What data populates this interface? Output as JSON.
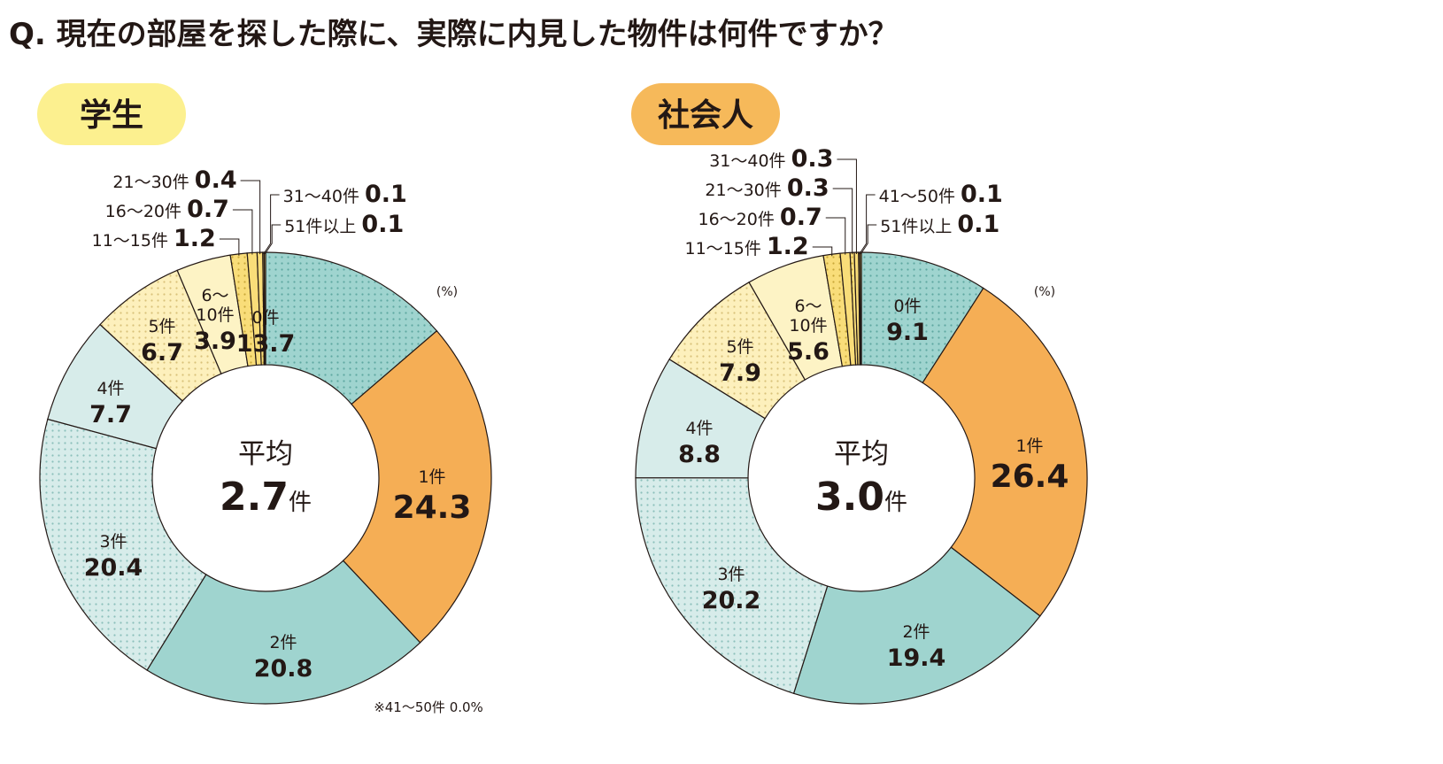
{
  "title": "Q. 現在の部屋を探した際に、実際に内見した物件は何件ですか？",
  "unit_label": "(%)",
  "center_label": "平均",
  "center_unit": "件",
  "colors": {
    "0": "#9fd4cf",
    "1": "#f5ae55",
    "2": "#9fd4cf",
    "3": "#d7ecea",
    "4": "#d7ecea",
    "5": "#fdf0bc",
    "6": "#fdf3c5",
    "small": "#f9dd79",
    "student_pill": "#fcf08f",
    "worker_pill": "#f6b95a",
    "stroke": "#231815"
  },
  "chart_data": [
    {
      "type": "pie",
      "title": "学生",
      "average": "2.7",
      "note": "※41～50件 0.0%",
      "categories": [
        "0件",
        "1件",
        "2件",
        "3件",
        "4件",
        "5件",
        "6～10件",
        "11～15件",
        "16～20件",
        "21～30件",
        "31～40件",
        "41～50件",
        "51件以上"
      ],
      "values": [
        13.7,
        24.3,
        20.8,
        20.4,
        7.7,
        6.7,
        3.9,
        1.2,
        0.7,
        0.4,
        0.1,
        0.0,
        0.1
      ],
      "labels": [
        {
          "cat": "0件",
          "val": "13.7"
        },
        {
          "cat": "1件",
          "val": "24.3"
        },
        {
          "cat": "2件",
          "val": "20.8"
        },
        {
          "cat": "3件",
          "val": "20.4"
        },
        {
          "cat": "4件",
          "val": "7.7"
        },
        {
          "cat": "5件",
          "val": "6.7"
        },
        {
          "cat": "6～\n10件",
          "val": "3.9"
        }
      ],
      "external_labels": [
        {
          "cat": "11～15件",
          "val": "1.2"
        },
        {
          "cat": "16～20件",
          "val": "0.7"
        },
        {
          "cat": "21～30件",
          "val": "0.4"
        },
        {
          "cat": "31～40件",
          "val": "0.1"
        },
        {
          "cat": "51件以上",
          "val": "0.1"
        }
      ]
    },
    {
      "type": "pie",
      "title": "社会人",
      "average": "3.0",
      "note": "",
      "categories": [
        "0件",
        "1件",
        "2件",
        "3件",
        "4件",
        "5件",
        "6～10件",
        "11～15件",
        "16～20件",
        "21～30件",
        "31～40件",
        "41～50件",
        "51件以上"
      ],
      "values": [
        9.1,
        26.4,
        19.4,
        20.2,
        8.8,
        7.9,
        5.6,
        1.2,
        0.7,
        0.3,
        0.3,
        0.1,
        0.1
      ],
      "labels": [
        {
          "cat": "0件",
          "val": "9.1"
        },
        {
          "cat": "1件",
          "val": "26.4"
        },
        {
          "cat": "2件",
          "val": "19.4"
        },
        {
          "cat": "3件",
          "val": "20.2"
        },
        {
          "cat": "4件",
          "val": "8.8"
        },
        {
          "cat": "5件",
          "val": "7.9"
        },
        {
          "cat": "6～\n10件",
          "val": "5.6"
        }
      ],
      "external_labels": [
        {
          "cat": "11～15件",
          "val": "1.2"
        },
        {
          "cat": "16～20件",
          "val": "0.7"
        },
        {
          "cat": "21～30件",
          "val": "0.3"
        },
        {
          "cat": "31～40件",
          "val": "0.3"
        },
        {
          "cat": "41～50件",
          "val": "0.1"
        },
        {
          "cat": "51件以上",
          "val": "0.1"
        }
      ]
    }
  ]
}
